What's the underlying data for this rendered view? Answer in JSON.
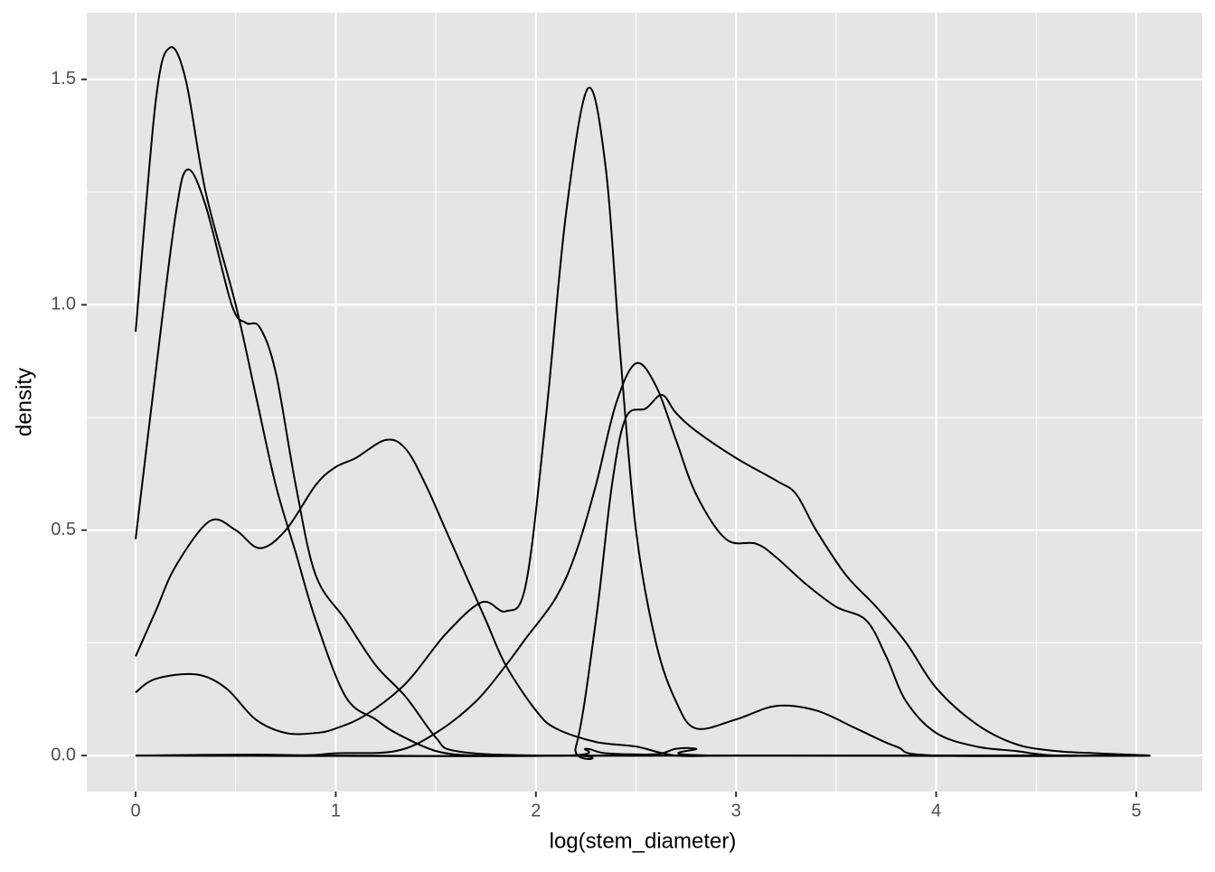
{
  "chart_data": {
    "type": "line",
    "xlabel": "log(stem_diameter)",
    "ylabel": "density",
    "xlim": [
      -0.244,
      5.33
    ],
    "ylim": [
      -0.08,
      1.648
    ],
    "xticks": [
      0,
      1,
      2,
      3,
      4,
      5
    ],
    "yticks": [
      {
        "value": 0,
        "label": "0.0"
      },
      0.5,
      {
        "value": 1,
        "label": "1.0"
      },
      1.5
    ],
    "minor_xticks": [
      0.5,
      1.5,
      2.5,
      3.5,
      4.5
    ],
    "minor_yticks": [
      0.25,
      0.75,
      1.25
    ],
    "grid": true,
    "series": [
      {
        "color": "#000000",
        "x": [
          0,
          0.1,
          0.17,
          0.25,
          0.35,
          0.5,
          0.6,
          0.7,
          0.8,
          0.9,
          1.05,
          1.2,
          1.3,
          1.5,
          1.7,
          2.0,
          2.5,
          3,
          4,
          5.07
        ],
        "values": [
          0.94,
          1.45,
          1.57,
          1.5,
          1.25,
          1.0,
          0.8,
          0.6,
          0.45,
          0.3,
          0.13,
          0.08,
          0.05,
          0.01,
          0,
          0,
          0,
          0,
          0,
          0
        ]
      },
      {
        "color": "#000000",
        "x": [
          0,
          0.1,
          0.2,
          0.26,
          0.35,
          0.48,
          0.55,
          0.62,
          0.7,
          0.8,
          0.9,
          1.05,
          1.2,
          1.35,
          1.5,
          1.6,
          2,
          3,
          4,
          5.07
        ],
        "values": [
          0.48,
          0.85,
          1.2,
          1.3,
          1.22,
          1.0,
          0.96,
          0.95,
          0.85,
          0.6,
          0.4,
          0.3,
          0.2,
          0.13,
          0.04,
          0.01,
          0,
          0,
          0,
          0
        ]
      },
      {
        "color": "#000000",
        "x": [
          0,
          0.1,
          0.2,
          0.37,
          0.5,
          0.62,
          0.75,
          0.9,
          1.0,
          1.1,
          1.25,
          1.35,
          1.45,
          1.55,
          1.65,
          1.75,
          1.85,
          2.0,
          2.1,
          2.3,
          2.5,
          2.7,
          3,
          4,
          5.07
        ],
        "values": [
          0.22,
          0.32,
          0.42,
          0.52,
          0.5,
          0.46,
          0.5,
          0.6,
          0.64,
          0.66,
          0.7,
          0.68,
          0.6,
          0.5,
          0.4,
          0.3,
          0.2,
          0.1,
          0.06,
          0.03,
          0.02,
          0,
          0,
          0,
          0
        ]
      },
      {
        "color": "#000000",
        "x": [
          0,
          0.1,
          0.3,
          0.45,
          0.6,
          0.75,
          0.9,
          1.0,
          1.15,
          1.35,
          1.55,
          1.73,
          1.85,
          1.95,
          2.05,
          2.15,
          2.26,
          2.35,
          2.42,
          2.5,
          2.6,
          2.7,
          2.8,
          3.0,
          3.2,
          3.4,
          3.6,
          3.8,
          4.0,
          5.07
        ],
        "values": [
          0.14,
          0.17,
          0.18,
          0.15,
          0.08,
          0.05,
          0.05,
          0.06,
          0.09,
          0.16,
          0.27,
          0.34,
          0.32,
          0.38,
          0.75,
          1.2,
          1.48,
          1.3,
          0.9,
          0.5,
          0.25,
          0.12,
          0.06,
          0.08,
          0.11,
          0.1,
          0.06,
          0.02,
          0,
          0
        ]
      },
      {
        "color": "#000000",
        "x": [
          0,
          0.8,
          1.0,
          1.3,
          1.5,
          1.7,
          1.85,
          1.95,
          2.1,
          2.2,
          2.3,
          2.4,
          2.5,
          2.6,
          2.7,
          2.8,
          2.95,
          3.1,
          3.2,
          3.35,
          3.5,
          3.65,
          3.75,
          3.85,
          4.0,
          4.2,
          4.4,
          4.6,
          5.07
        ],
        "values": [
          0,
          0,
          0.005,
          0.01,
          0.05,
          0.12,
          0.2,
          0.26,
          0.35,
          0.45,
          0.6,
          0.78,
          0.87,
          0.82,
          0.7,
          0.58,
          0.48,
          0.47,
          0.44,
          0.38,
          0.33,
          0.3,
          0.22,
          0.12,
          0.05,
          0.02,
          0.01,
          0,
          0
        ]
      },
      {
        "color": "#000000",
        "x": [
          0,
          2.1,
          2.2,
          2.3,
          2.38,
          2.45,
          2.55,
          2.63,
          2.7,
          2.8,
          3.0,
          3.2,
          3.3,
          3.4,
          3.55,
          3.7,
          3.85,
          4.0,
          4.2,
          4.4,
          4.6,
          4.8,
          5.07
        ],
        "values": [
          0,
          0,
          0.02,
          0.3,
          0.6,
          0.75,
          0.77,
          0.8,
          0.76,
          0.72,
          0.66,
          0.61,
          0.58,
          0.5,
          0.4,
          0.33,
          0.25,
          0.15,
          0.07,
          0.025,
          0.01,
          0.005,
          0
        ]
      },
      {
        "color": "#000000",
        "x": [
          0,
          0.6,
          1,
          2.15,
          2.25,
          2.35,
          2.6,
          2.7,
          2.8,
          2.9,
          5.07
        ],
        "values": [
          0,
          0.002,
          0,
          0,
          0.015,
          0.005,
          0.003,
          0.015,
          0.015,
          0,
          0
        ]
      }
    ]
  }
}
